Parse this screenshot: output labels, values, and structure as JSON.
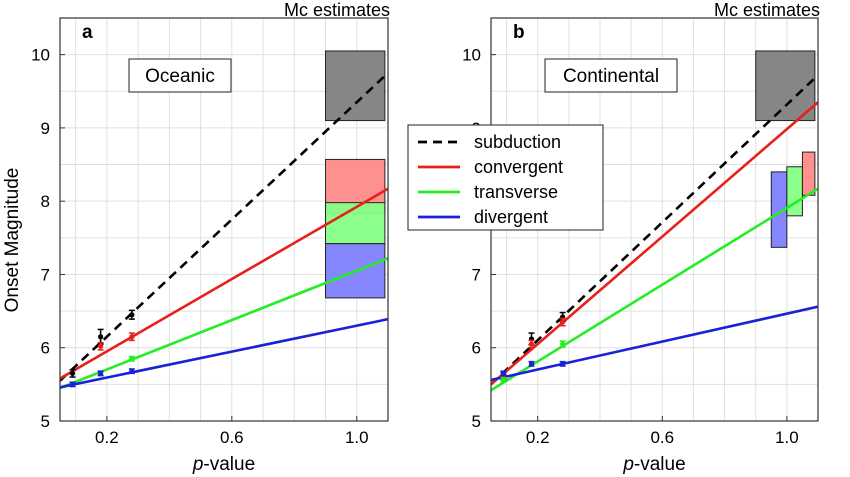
{
  "chart_data": {
    "type": "line",
    "ylabel": "Onset Magnitude",
    "ylim": [
      5,
      10.5
    ],
    "yticks": [
      "5",
      "6",
      "7",
      "8",
      "9",
      "10"
    ],
    "xlabel_italic": "p",
    "xlabel_rest": "-value",
    "xlim": [
      0.05,
      1.1
    ],
    "xticks": [
      "0.2",
      "0.6",
      "1.0"
    ],
    "grid": true,
    "legend": {
      "placement": "center between panels",
      "entries": [
        {
          "label": "subduction",
          "color": "#000000",
          "dashed": true
        },
        {
          "label": "convergent",
          "color": "#e8201a",
          "dashed": false
        },
        {
          "label": "transverse",
          "color": "#22ee22",
          "dashed": false
        },
        {
          "label": "divergent",
          "color": "#1a22d8",
          "dashed": false
        }
      ]
    },
    "panels": [
      {
        "letter": "a",
        "region": "Oceanic",
        "mc_title": "Mc estimates",
        "lines": [
          {
            "series": "subduction",
            "x": [
              0.05,
              1.1
            ],
            "y": [
              5.55,
              9.75
            ]
          },
          {
            "series": "convergent",
            "x": [
              0.05,
              1.1
            ],
            "y": [
              5.58,
              8.17
            ]
          },
          {
            "series": "transverse",
            "x": [
              0.05,
              1.1
            ],
            "y": [
              5.45,
              7.22
            ]
          },
          {
            "series": "divergent",
            "x": [
              0.05,
              1.1
            ],
            "y": [
              5.46,
              6.39
            ]
          }
        ],
        "points": [
          {
            "series": "subduction",
            "x": [
              0.09,
              0.18,
              0.28
            ],
            "y": [
              5.65,
              6.15,
              6.45
            ],
            "err": [
              0.05,
              0.1,
              0.06
            ]
          },
          {
            "series": "convergent",
            "x": [
              0.18,
              0.28
            ],
            "y": [
              6.02,
              6.15
            ],
            "err": [
              0.05,
              0.05
            ]
          },
          {
            "series": "transverse",
            "x": [
              0.18,
              0.28
            ],
            "y": [
              5.65,
              5.85
            ],
            "err": [
              0.03,
              0.03
            ]
          },
          {
            "series": "divergent",
            "x": [
              0.09,
              0.18,
              0.28
            ],
            "y": [
              5.5,
              5.65,
              5.68
            ],
            "err": [
              0.03,
              0.03,
              0.03
            ]
          }
        ],
        "mc_boxes": [
          {
            "series": "subduction",
            "x": [
              0.9,
              1.09
            ],
            "y": [
              9.1,
              10.05
            ]
          },
          {
            "series": "convergent",
            "x": [
              0.9,
              1.09
            ],
            "y": [
              7.83,
              8.57
            ]
          },
          {
            "series": "transverse",
            "x": [
              0.9,
              1.09
            ],
            "y": [
              7.42,
              7.98
            ]
          },
          {
            "series": "divergent",
            "x": [
              0.9,
              1.09
            ],
            "y": [
              6.68,
              7.42
            ]
          }
        ]
      },
      {
        "letter": "b",
        "region": "Continental",
        "mc_title": "Mc estimates",
        "lines": [
          {
            "series": "subduction",
            "x": [
              0.05,
              1.1
            ],
            "y": [
              5.5,
              9.72
            ]
          },
          {
            "series": "convergent",
            "x": [
              0.05,
              1.1
            ],
            "y": [
              5.5,
              9.35
            ]
          },
          {
            "series": "transverse",
            "x": [
              0.05,
              1.1
            ],
            "y": [
              5.42,
              8.17
            ]
          },
          {
            "series": "divergent",
            "x": [
              0.05,
              1.1
            ],
            "y": [
              5.56,
              6.56
            ]
          }
        ],
        "points": [
          {
            "series": "subduction",
            "x": [
              0.09,
              0.18,
              0.28
            ],
            "y": [
              5.62,
              6.12,
              6.42
            ],
            "err": [
              0.05,
              0.08,
              0.06
            ]
          },
          {
            "series": "convergent",
            "x": [
              0.09,
              0.18,
              0.28
            ],
            "y": [
              5.6,
              6.05,
              6.35
            ],
            "err": [
              0.04,
              0.05,
              0.05
            ]
          },
          {
            "series": "transverse",
            "x": [
              0.09,
              0.28
            ],
            "y": [
              5.56,
              6.05
            ],
            "err": [
              0.03,
              0.04
            ]
          },
          {
            "series": "divergent",
            "x": [
              0.09,
              0.18,
              0.28
            ],
            "y": [
              5.65,
              5.78,
              5.78
            ],
            "err": [
              0.03,
              0.03,
              0.03
            ]
          }
        ],
        "mc_boxes": [
          {
            "series": "subduction",
            "x": [
              0.9,
              1.09
            ],
            "y": [
              9.1,
              10.05
            ]
          },
          {
            "series": "divergent",
            "x": [
              0.95,
              1.0
            ],
            "y": [
              7.37,
              8.4
            ]
          },
          {
            "series": "transverse",
            "x": [
              1.0,
              1.05
            ],
            "y": [
              7.8,
              8.47
            ]
          },
          {
            "series": "convergent",
            "x": [
              1.05,
              1.09
            ],
            "y": [
              8.08,
              8.67
            ]
          }
        ]
      }
    ]
  }
}
